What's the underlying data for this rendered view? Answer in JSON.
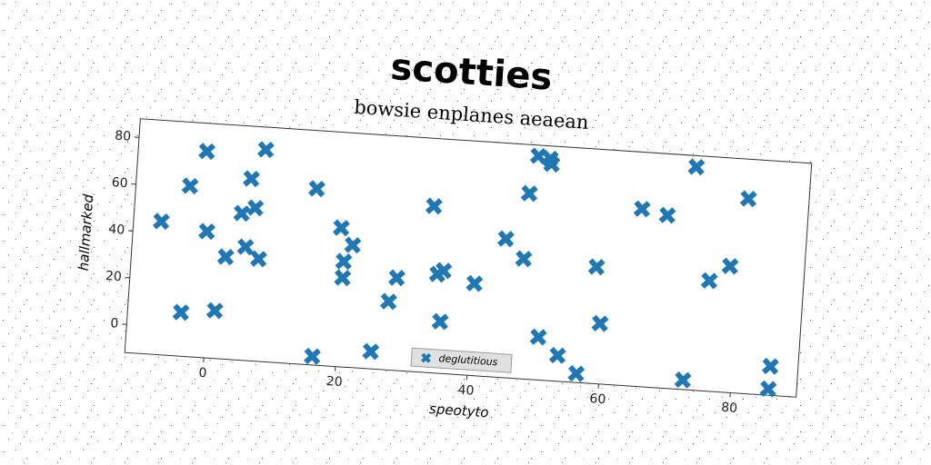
{
  "chart_data": {
    "type": "scatter",
    "title": "scotties",
    "subtitle": "bowsie enplanes aeaean",
    "x_label": "speotyto",
    "y_label": "hallmarked",
    "xlim": [
      -12,
      90
    ],
    "ylim": [
      -12,
      88
    ],
    "xticks": [
      0,
      20,
      40,
      60,
      80
    ],
    "yticks": [
      0,
      20,
      40,
      60,
      80
    ],
    "legend": "bottom",
    "series": [
      {
        "name": "deglutitious",
        "color": "#1f77b4",
        "marker": "X",
        "x": [
          -7.8,
          -3.9,
          -3.8,
          -1.6,
          -0.8,
          1.2,
          2.3,
          4.3,
          5.2,
          5.4,
          6.3,
          7.3,
          7.3,
          16.4,
          15.4,
          19.5,
          20.2,
          20.2,
          21.4,
          25.2,
          27.4,
          28.4,
          33.3,
          34.5,
          35.4,
          35.4,
          40.2,
          44.5,
          47.4,
          47.6,
          50.4,
          48.6,
          50.4,
          50.7,
          53.5,
          56.5,
          58.5,
          59.6,
          64.8,
          68.7,
          72.7,
          72.6,
          75.7,
          78.7,
          80.8,
          85.8,
          85.7
        ],
        "values": [
          44.9,
          6.7,
          60.8,
          76,
          41.9,
          8.4,
          31.6,
          50.6,
          36.4,
          65.6,
          53.3,
          31.7,
          78.4,
          -8.3,
          63.2,
          47.2,
          33,
          26,
          40.2,
          -4.6,
          17.2,
          27.5,
          59.1,
          30.2,
          31.9,
          10.1,
          27.3,
          47.2,
          39.2,
          67.2,
          6.3,
          83.4,
          82.6,
          80.3,
          -1,
          -8.2,
          37.8,
          13.8,
          63.8,
          61.8,
          -7.9,
          83.2,
          35.1,
          41.9,
          71.1,
          0.4,
          -9.3
        ]
      }
    ]
  }
}
